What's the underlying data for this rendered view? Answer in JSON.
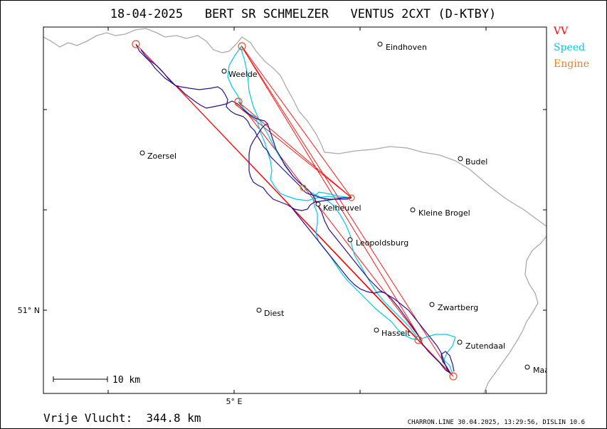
{
  "header": {
    "title": "18-04-2025   BERT SR SCHMELZER   VENTUS 2CXT (D-KTBY)"
  },
  "legend": {
    "vv": {
      "label": "VV",
      "color": "#ff0000"
    },
    "speed": {
      "label": "Speed",
      "color": "#00c8e6"
    },
    "engine": {
      "label": "Engine",
      "color": "#e87f1e"
    }
  },
  "colors": {
    "track": "#2d0f8c",
    "border": "#aaaaaa"
  },
  "towns": [
    {
      "name": "Eindhoven"
    },
    {
      "name": "Weelde"
    },
    {
      "name": "Zoersel"
    },
    {
      "name": "Budel"
    },
    {
      "name": "Kleine Brogel"
    },
    {
      "name": "Keiheuvel"
    },
    {
      "name": "Leopoldsburg"
    },
    {
      "name": "Zwartberg"
    },
    {
      "name": "Diest"
    },
    {
      "name": "Hasselt"
    },
    {
      "name": "Zutendaal"
    },
    {
      "name": "Maa"
    }
  ],
  "axes": {
    "lat_label": "51° N",
    "lon_label": "5° E"
  },
  "scale_bar": {
    "label": "10 km"
  },
  "footer": {
    "distance": "Vrije Vlucht:  344.8 km",
    "software": "CHARRON.LINE 30.04.2025, 13:29:56, DISLIN 10.6"
  }
}
